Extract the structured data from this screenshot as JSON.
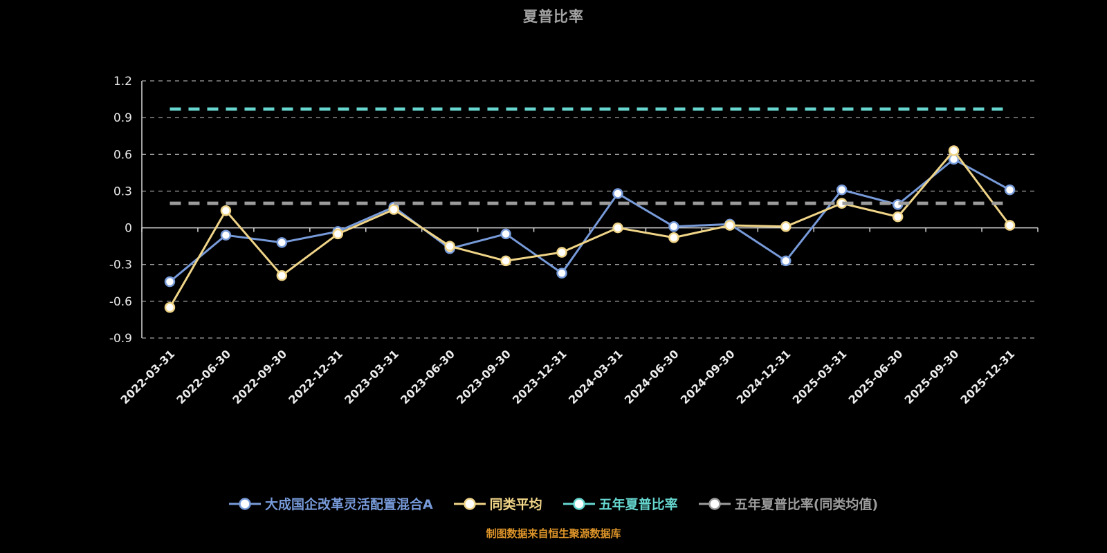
{
  "title": "夏普比率",
  "footer": "制图数据来自恒生聚源数据库",
  "colors": {
    "background": "#000000",
    "title": "#a3a3a3",
    "footer": "#dd9429",
    "axis_line": "#d6d6d6",
    "grid_line": "#f0f0f0",
    "tick_label": "#ececec"
  },
  "chart_data": {
    "type": "line",
    "title": "夏普比率",
    "xlabel": "",
    "ylabel": "",
    "ylim": [
      -0.9,
      1.2
    ],
    "yticks": [
      "1.2",
      "0.9",
      "0.6",
      "0.3",
      "0",
      "-0.3",
      "-0.6",
      "-0.9"
    ],
    "grid": "horizontal-dashed",
    "legend_position": "bottom",
    "x": [
      "2022-03-31",
      "2022-06-30",
      "2022-09-30",
      "2022-12-31",
      "2023-03-31",
      "2023-06-30",
      "2023-09-30",
      "2023-12-31",
      "2024-03-31",
      "2024-06-30",
      "2024-09-30",
      "2024-12-31",
      "2025-03-31",
      "2025-06-30",
      "2025-09-30",
      "2025-12-31"
    ],
    "series": [
      {
        "name": "大成国企改革灵活配置混合A",
        "type": "line",
        "color": "#779ad9",
        "values": [
          -0.44,
          -0.06,
          -0.12,
          -0.03,
          0.17,
          -0.17,
          -0.05,
          -0.37,
          0.28,
          0.01,
          0.03,
          -0.27,
          0.31,
          0.19,
          0.56,
          0.31
        ]
      },
      {
        "name": "同类平均",
        "type": "line",
        "color": "#f0d588",
        "values": [
          -0.65,
          0.14,
          -0.39,
          -0.05,
          0.15,
          -0.15,
          -0.27,
          -0.2,
          0.0,
          -0.08,
          0.02,
          0.01,
          0.2,
          0.09,
          0.63,
          0.02
        ]
      },
      {
        "name": "五年夏普比率",
        "type": "hline-dashed",
        "color": "#66d6cf",
        "value": 0.97
      },
      {
        "name": "五年夏普比率(同类均值)",
        "type": "hline-dashed",
        "color": "#9c9c9c",
        "value": 0.2
      }
    ]
  },
  "legend": [
    {
      "label": "大成国企改革灵活配置混合A",
      "color": "#779ad9"
    },
    {
      "label": "同类平均",
      "color": "#f0d588"
    },
    {
      "label": "五年夏普比率",
      "color": "#66d6cf"
    },
    {
      "label": "五年夏普比率(同类均值)",
      "color": "#9c9c9c"
    }
  ]
}
